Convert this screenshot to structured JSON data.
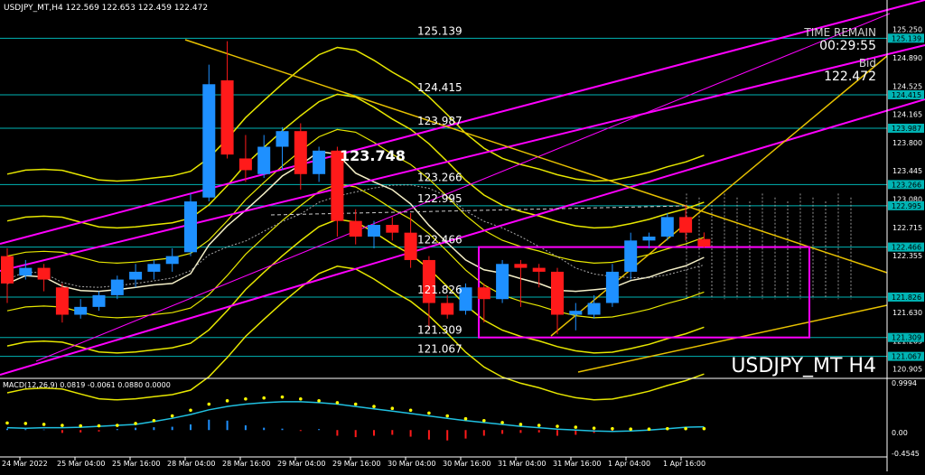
{
  "header": {
    "symbol_line": "USDJPY_MT,H4  122.569 122.653 122.459 122.472"
  },
  "info_panel": {
    "time_remain_label": "TIME REMAIN",
    "time_remain_value": "00:29:55",
    "bid_label": "Bid",
    "bid_value": "122.472"
  },
  "watermark": "USDJPY_MT H4",
  "big_label": "123.748",
  "levels": [
    {
      "text": "125.139",
      "value": 125.139
    },
    {
      "text": "124.415",
      "value": 124.415
    },
    {
      "text": "123.987",
      "value": 123.987
    },
    {
      "text": "123.266",
      "value": 123.266
    },
    {
      "text": "122.995",
      "value": 122.995
    },
    {
      "text": "122.466",
      "value": 122.466
    },
    {
      "text": "121.826",
      "value": 121.826
    },
    {
      "text": "121.309",
      "value": 121.309
    },
    {
      "text": "121.067",
      "value": 121.067
    }
  ],
  "price_axis": {
    "plain": [
      "125.250",
      "124.890",
      "124.525",
      "124.165",
      "123.800",
      "123.445",
      "123.080",
      "122.715",
      "122.355",
      "121.630",
      "121.265",
      "120.905"
    ],
    "boxed": [
      "125.139",
      "124.415",
      "123.987",
      "123.266",
      "122.995",
      "122.466",
      "121.826",
      "121.309",
      "121.067"
    ]
  },
  "time_axis": [
    "24 Mar 2022",
    "25 Mar 04:00",
    "25 Mar 16:00",
    "28 Mar 04:00",
    "28 Mar 16:00",
    "29 Mar 04:00",
    "29 Mar 16:00",
    "30 Mar 04:00",
    "30 Mar 16:00",
    "31 Mar 04:00",
    "31 Mar 16:00",
    "1 Apr 04:00",
    "1 Apr 16:00"
  ],
  "macd": {
    "label": "MACD(12,26,9) 0.0819 -0.0061 0.0880 0.0000",
    "axis_top": "0.9994",
    "axis_zero": "0.00",
    "axis_bottom": "-0.4545"
  },
  "colors": {
    "bull": "#1e90ff",
    "bear": "#ff1a1a",
    "level_line": "#00b4b4",
    "trend_magenta": "#ff00ff",
    "bands_yellow": "#e6e600",
    "signal_dots": "#ffff00",
    "macd_line": "#20c0e0"
  },
  "chart_data": {
    "type": "candlestick",
    "symbol": "USDJPY_MT",
    "timeframe": "H4",
    "ohlc": [
      [
        122.35,
        122.45,
        121.75,
        122.0
      ],
      [
        122.1,
        122.3,
        122.05,
        122.2
      ],
      [
        122.2,
        122.25,
        121.9,
        122.05
      ],
      [
        121.95,
        122.0,
        121.5,
        121.6
      ],
      [
        121.6,
        121.8,
        121.55,
        121.7
      ],
      [
        121.7,
        121.9,
        121.65,
        121.85
      ],
      [
        121.85,
        122.1,
        121.8,
        122.05
      ],
      [
        122.05,
        122.25,
        121.95,
        122.15
      ],
      [
        122.15,
        122.3,
        122.05,
        122.25
      ],
      [
        122.25,
        122.45,
        122.15,
        122.35
      ],
      [
        122.4,
        123.15,
        122.35,
        123.05
      ],
      [
        123.1,
        124.8,
        123.05,
        124.55
      ],
      [
        124.6,
        125.1,
        123.6,
        123.65
      ],
      [
        123.6,
        123.9,
        123.3,
        123.45
      ],
      [
        123.4,
        123.9,
        123.35,
        123.75
      ],
      [
        123.75,
        124.0,
        123.45,
        123.95
      ],
      [
        123.95,
        124.05,
        123.2,
        123.4
      ],
      [
        123.4,
        123.75,
        123.3,
        123.7
      ],
      [
        123.7,
        123.75,
        122.6,
        122.8
      ],
      [
        122.8,
        122.95,
        122.5,
        122.6
      ],
      [
        122.6,
        122.8,
        122.45,
        122.75
      ],
      [
        122.75,
        122.85,
        122.55,
        122.65
      ],
      [
        122.65,
        122.9,
        122.2,
        122.3
      ],
      [
        122.3,
        122.35,
        121.4,
        121.75
      ],
      [
        121.75,
        121.85,
        121.55,
        121.6
      ],
      [
        121.65,
        122.0,
        121.6,
        121.95
      ],
      [
        121.95,
        122.0,
        121.5,
        121.8
      ],
      [
        121.8,
        122.3,
        121.75,
        122.25
      ],
      [
        122.25,
        122.3,
        121.7,
        122.2
      ],
      [
        122.2,
        122.25,
        121.95,
        122.15
      ],
      [
        122.15,
        122.2,
        121.35,
        121.6
      ],
      [
        121.6,
        121.75,
        121.4,
        121.65
      ],
      [
        121.6,
        121.85,
        121.55,
        121.75
      ],
      [
        121.75,
        122.25,
        121.7,
        122.15
      ],
      [
        122.15,
        122.65,
        122.05,
        122.55
      ],
      [
        122.55,
        122.65,
        122.45,
        122.6
      ],
      [
        122.6,
        122.9,
        122.55,
        122.85
      ],
      [
        122.85,
        123.0,
        122.55,
        122.65
      ],
      [
        122.569,
        122.653,
        122.459,
        122.472
      ]
    ],
    "macd_hist": [
      0.03,
      0.02,
      0.01,
      -0.06,
      -0.05,
      -0.03,
      0.02,
      0.05,
      0.06,
      0.07,
      0.12,
      0.22,
      0.2,
      0.1,
      0.05,
      0.03,
      -0.02,
      0.02,
      -0.12,
      -0.15,
      -0.12,
      -0.1,
      -0.14,
      -0.2,
      -0.22,
      -0.18,
      -0.12,
      -0.08,
      -0.06,
      -0.05,
      -0.12,
      -0.1,
      -0.06,
      -0.02,
      0.02,
      0.04,
      0.05,
      0.04,
      0.0
    ],
    "macd_signal_dots": [
      0.15,
      0.14,
      0.12,
      0.1,
      0.09,
      0.09,
      0.1,
      0.14,
      0.2,
      0.3,
      0.42,
      0.55,
      0.62,
      0.66,
      0.68,
      0.7,
      0.66,
      0.62,
      0.58,
      0.55,
      0.5,
      0.46,
      0.42,
      0.36,
      0.3,
      0.24,
      0.2,
      0.16,
      0.12,
      0.1,
      0.08,
      0.06,
      0.04,
      0.03,
      0.02,
      0.02,
      0.03,
      0.03,
      0.03
    ],
    "macd_line": [
      0.05,
      0.04,
      0.05,
      0.05,
      0.06,
      0.08,
      0.1,
      0.12,
      0.18,
      0.25,
      0.33,
      0.43,
      0.5,
      0.55,
      0.58,
      0.6,
      0.6,
      0.58,
      0.55,
      0.5,
      0.45,
      0.4,
      0.35,
      0.3,
      0.25,
      0.2,
      0.16,
      0.12,
      0.08,
      0.05,
      0.02,
      0.0,
      -0.02,
      -0.03,
      -0.02,
      0.0,
      0.03,
      0.06,
      0.07
    ]
  }
}
